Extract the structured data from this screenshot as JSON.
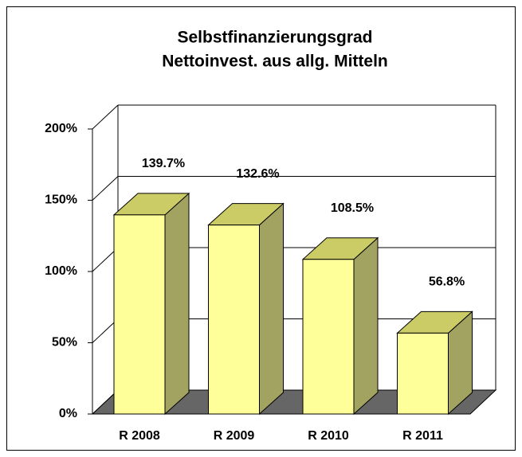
{
  "chart_data": {
    "type": "bar3d",
    "title": [
      "Selbstfinanzierungsgrad",
      "Nettoinvest. aus allg. Mitteln"
    ],
    "categories": [
      "R 2008",
      "R 2009",
      "R 2010",
      "R 2011"
    ],
    "values": [
      139.7,
      132.6,
      108.5,
      56.8
    ],
    "value_labels": [
      "139.7%",
      "132.6%",
      "108.5%",
      "56.8%"
    ],
    "color": "#ffff99",
    "ylim": [
      0,
      200
    ],
    "yticks": [
      {
        "value": 0,
        "label": "0%"
      },
      {
        "value": 50,
        "label": "50%"
      },
      {
        "value": 100,
        "label": "100%"
      },
      {
        "value": 150,
        "label": "150%"
      },
      {
        "value": 200,
        "label": "200%"
      }
    ],
    "grid": true
  }
}
